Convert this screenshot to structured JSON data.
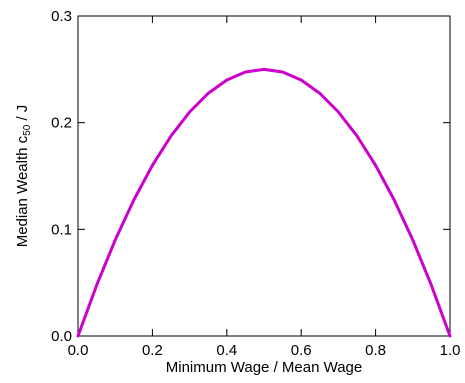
{
  "chart_data": {
    "type": "line",
    "xlabel": "Minimum Wage / Mean Wage",
    "ylabel_main": "Median Wealth c",
    "ylabel_subscript": "50",
    "ylabel_suffix": " / J",
    "xlim": [
      0.0,
      1.0
    ],
    "ylim": [
      0.0,
      0.3
    ],
    "x_ticks": [
      0.0,
      0.2,
      0.4,
      0.6,
      0.8,
      1.0
    ],
    "x_tick_labels": [
      "0.0",
      "0.2",
      "0.4",
      "0.6",
      "0.8",
      "1.0"
    ],
    "y_ticks": [
      0.0,
      0.1,
      0.2,
      0.3
    ],
    "y_tick_labels": [
      "0.0",
      "0.1",
      "0.2",
      "0.3"
    ],
    "grid": false,
    "legend": "none",
    "series": [
      {
        "color": "#cc00cc",
        "x": [
          0.0,
          0.05,
          0.1,
          0.15,
          0.2,
          0.25,
          0.3,
          0.35,
          0.4,
          0.45,
          0.5,
          0.55,
          0.6,
          0.65,
          0.7,
          0.75,
          0.8,
          0.85,
          0.9,
          0.95,
          1.0
        ],
        "y": [
          0.0,
          0.0475,
          0.09,
          0.1275,
          0.16,
          0.1875,
          0.21,
          0.2275,
          0.24,
          0.2475,
          0.25,
          0.2475,
          0.24,
          0.2275,
          0.21,
          0.1875,
          0.16,
          0.1275,
          0.09,
          0.0475,
          0.0
        ]
      }
    ]
  }
}
